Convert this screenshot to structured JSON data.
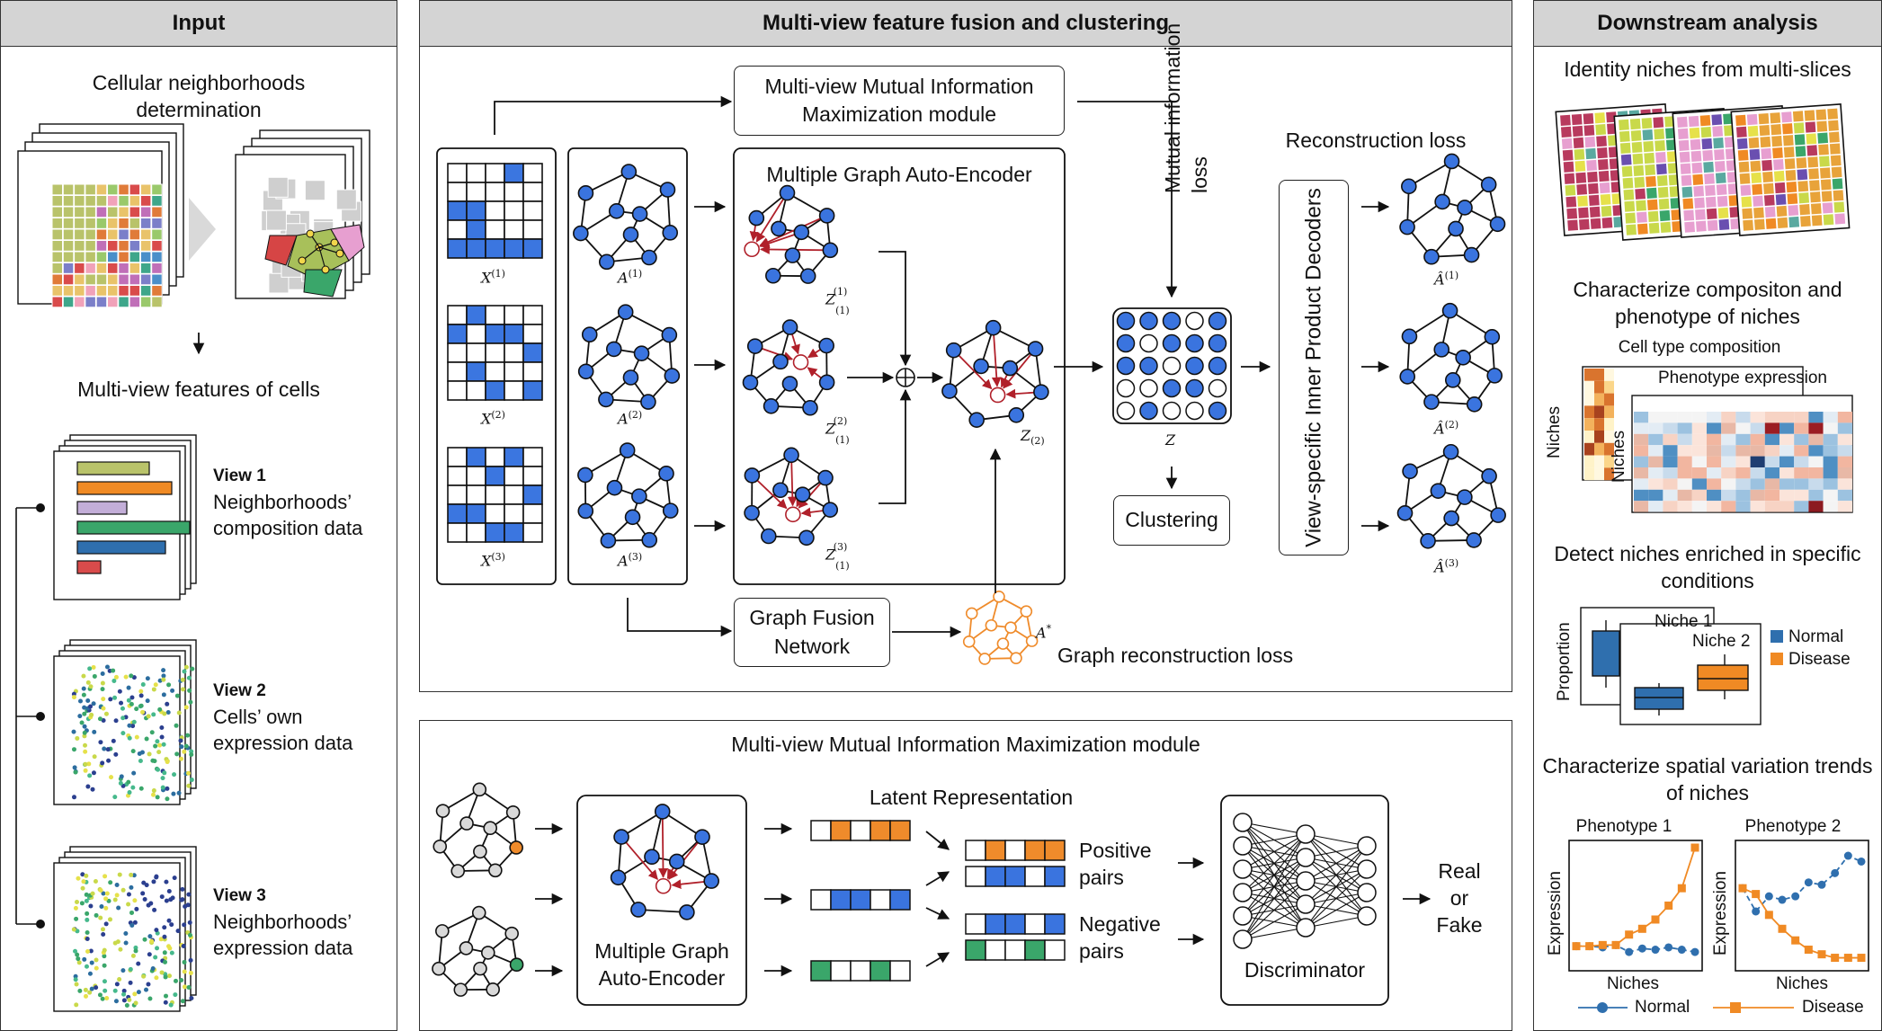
{
  "panels": {
    "input": {
      "title": "Input",
      "neighborhoods_title": "Cellular neighborhoods determination",
      "features_title": "Multi-view features of cells",
      "views": [
        {
          "name": "View 1",
          "desc": "Neighborhoods’ composition data"
        },
        {
          "name": "View 2",
          "desc": "Cells’ own expression data"
        },
        {
          "name": "View 3",
          "desc": "Neighborhoods’ expression data"
        }
      ]
    },
    "fusion": {
      "title": "Multi-view feature fusion and clustering",
      "mim_module": "Multi-view Mutual Information Maximization module",
      "mgae": "Multiple Graph Auto-Encoder",
      "mi_loss": "Mutual information loss",
      "recon_loss": "Reconstruction loss",
      "decoders": "View-specific Inner Product Decoders",
      "clustering": "Clustering",
      "gfn": "Graph Fusion Network",
      "graph_recon_loss": "Graph reconstruction loss",
      "z_label": "Z",
      "a_star": "A*",
      "x_labels": [
        "X(1)",
        "X(2)",
        "X(3)"
      ],
      "a_labels": [
        "A(1)",
        "A(2)",
        "A(3)"
      ],
      "z_view_labels": [
        "Z(1)(1)",
        "Z(2)(1)",
        "Z(3)(1)"
      ],
      "z_fused": "Z(2)",
      "a_hat_labels": [
        "Â(1)",
        "Â(2)",
        "Â(3)"
      ]
    },
    "mim": {
      "title": "Multi-view Mutual Information Maximization module",
      "encoder": "Multiple Graph Auto-Encoder",
      "latent": "Latent Representation",
      "positive": "Positive pairs",
      "negative": "Negative pairs",
      "discriminator": "Discriminator",
      "output": "Real or Fake"
    },
    "downstream": {
      "title": "Downstream analysis",
      "s1": "Identity niches from multi-slices",
      "s2": "Characterize compositon and phenotype of niches",
      "cell_type_comp": "Cell type composition",
      "phenotype_expr": "Phenotype expression",
      "niches": "Niches",
      "s3": "Detect niches enriched in specific conditions",
      "proportion": "Proportion",
      "niche1": "Niche 1",
      "niche2": "Niche 2",
      "legend_normal": "Normal",
      "legend_disease": "Disease",
      "s4": "Characterize spatial variation trends of niches",
      "pheno1": "Phenotype 1",
      "pheno2": "Phenotype 2",
      "expression": "Expression"
    }
  },
  "chart_data": [
    {
      "type": "line",
      "title": "Phenotype 1",
      "xlabel": "Niches",
      "ylabel": "Expression",
      "x": [
        1,
        2,
        3,
        4,
        5,
        6,
        7,
        8,
        9,
        10
      ],
      "series": [
        {
          "name": "Normal",
          "values": [
            0.15,
            0.15,
            0.14,
            0.16,
            0.1,
            0.13,
            0.12,
            0.14,
            0.12,
            0.1
          ]
        },
        {
          "name": "Disease",
          "values": [
            0.15,
            0.15,
            0.16,
            0.16,
            0.25,
            0.3,
            0.38,
            0.5,
            0.65,
            1.0
          ]
        }
      ]
    },
    {
      "type": "line",
      "title": "Phenotype 2",
      "xlabel": "Niches",
      "ylabel": "Expression",
      "x": [
        1,
        2,
        3,
        4,
        5,
        6,
        7,
        8,
        9,
        10
      ],
      "series": [
        {
          "name": "Normal",
          "values": [
            0.65,
            0.45,
            0.58,
            0.55,
            0.58,
            0.7,
            0.68,
            0.78,
            0.93,
            0.88
          ]
        },
        {
          "name": "Disease",
          "values": [
            0.65,
            0.6,
            0.42,
            0.3,
            0.2,
            0.12,
            0.08,
            0.05,
            0.05,
            0.05
          ]
        }
      ]
    }
  ],
  "colors": {
    "blue": "#3b76e0",
    "node_blue": "#3a74df",
    "orange": "#ef8b2b",
    "green": "#3aa66a",
    "red": "#b0202a",
    "header_gray": "#d4d4d4",
    "normal": "#2f6fae",
    "disease": "#f08a24"
  }
}
